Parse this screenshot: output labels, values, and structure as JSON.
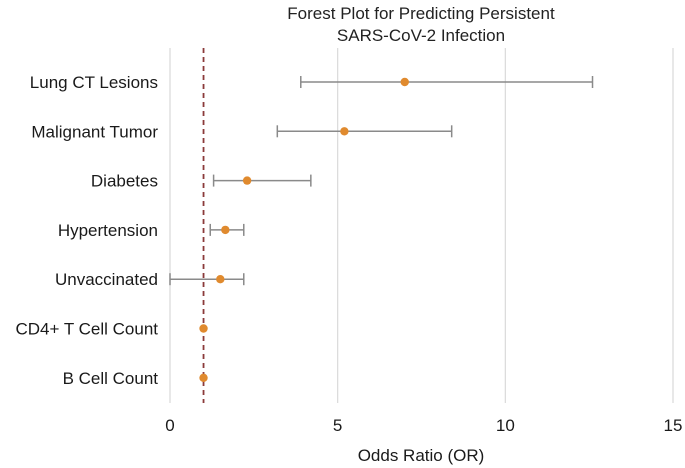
{
  "chart_data": {
    "type": "forest",
    "title_lines": [
      "Forest Plot for Predicting Persistent",
      "SARS-CoV-2 Infection"
    ],
    "xlabel": "Odds Ratio (OR)",
    "xlim": [
      0,
      15
    ],
    "xticks": [
      0,
      5,
      10,
      15
    ],
    "reference_line": 1,
    "grid": true,
    "rows": [
      {
        "label": "Lung CT Lesions",
        "or": 7.0,
        "lower": 3.9,
        "upper": 12.6
      },
      {
        "label": "Malignant Tumor",
        "or": 5.2,
        "lower": 3.2,
        "upper": 8.4
      },
      {
        "label": "Diabetes",
        "or": 2.3,
        "lower": 1.3,
        "upper": 4.2
      },
      {
        "label": "Hypertension",
        "or": 1.65,
        "lower": 1.2,
        "upper": 2.2
      },
      {
        "label": "Unvaccinated",
        "or": 1.5,
        "lower": 0.0,
        "upper": 2.2
      },
      {
        "label": "CD4+ T Cell Count",
        "or": 1.0,
        "lower": 0.99,
        "upper": 1.01
      },
      {
        "label": "B Cell Count",
        "or": 1.0,
        "lower": 0.99,
        "upper": 1.01
      }
    ],
    "colors": {
      "point": "#E08A2E",
      "whisker": "#8a8a8a",
      "reference": "#8B3A3A",
      "grid": "#d9d9d9",
      "axis": "#333333"
    }
  }
}
